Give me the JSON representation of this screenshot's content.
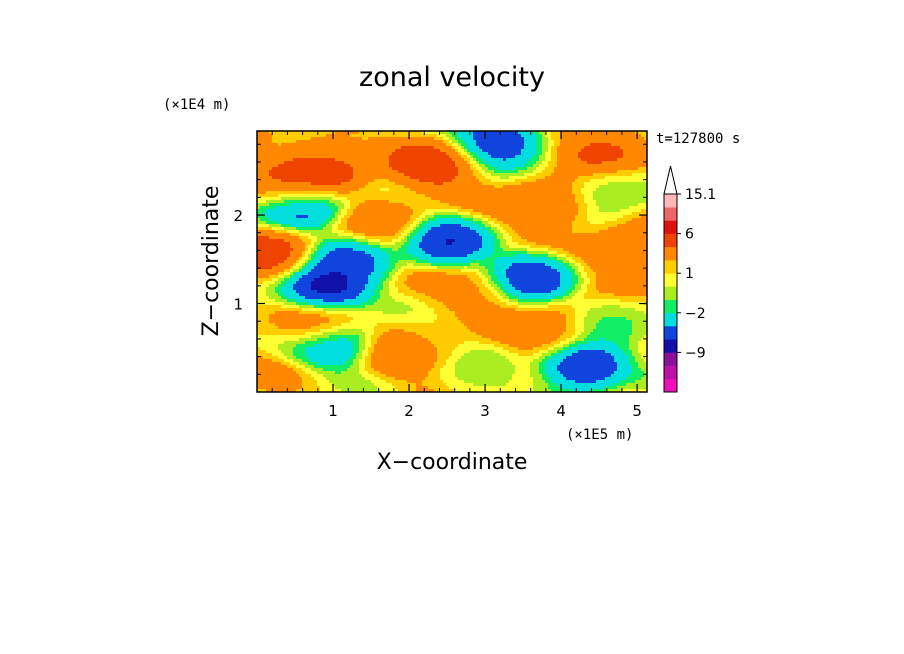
{
  "chart_data": {
    "type": "heatmap",
    "title": "zonal velocity",
    "xlabel": "X−coordinate",
    "ylabel": "Z−coordinate",
    "x_scale_label": "(×1E5 m)",
    "y_scale_label": "(×1E4 m)",
    "time_label": "t=127800 s",
    "xlim": [
      0,
      5.13
    ],
    "ylim": [
      0,
      2.95
    ],
    "x_ticks": [
      1,
      2,
      3,
      4,
      5
    ],
    "y_ticks": [
      1,
      2
    ],
    "colorbar": {
      "levels": [
        -15,
        -12,
        -9,
        -6,
        -4,
        -2,
        -1,
        0,
        1,
        2,
        4,
        6,
        9,
        12,
        15.1
      ],
      "tick_labels": [
        {
          "value": 15.1,
          "text": "15.1"
        },
        {
          "value": 6,
          "text": "6"
        },
        {
          "value": 1,
          "text": "1"
        },
        {
          "value": -2,
          "text": "−2"
        },
        {
          "value": -9,
          "text": "−9"
        }
      ],
      "colors": [
        "#ee11bb",
        "#bb11aa",
        "#881199",
        "#1111aa",
        "#1144dd",
        "#00dddd",
        "#11ee66",
        "#aaee22",
        "#ffff33",
        "#ffcc00",
        "#ff8800",
        "#ee4400",
        "#dd1111",
        "#ee6666",
        "#ffb8b8"
      ],
      "extend": "max"
    },
    "field_features": [
      {
        "x": 0.8,
        "z": 2.45,
        "value": 7
      },
      {
        "x": 0.45,
        "z": 2.3,
        "value": 5
      },
      {
        "x": 0.9,
        "z": 2.65,
        "value": 4
      },
      {
        "x": 0.9,
        "z": 1.15,
        "value": -10
      },
      {
        "x": 0.8,
        "z": 0.75,
        "value": 6
      },
      {
        "x": 1.2,
        "z": 1.5,
        "value": -7
      },
      {
        "x": 1.0,
        "z": 0.55,
        "value": -7
      },
      {
        "x": 0.6,
        "z": 2.1,
        "value": -8
      },
      {
        "x": 2.5,
        "z": 1.7,
        "value": -8
      },
      {
        "x": 2.3,
        "z": 2.55,
        "value": 6
      },
      {
        "x": 3.8,
        "z": 2.1,
        "value": 5
      },
      {
        "x": 3.6,
        "z": 1.3,
        "value": -8
      },
      {
        "x": 3.8,
        "z": 0.7,
        "value": 4
      },
      {
        "x": 4.6,
        "z": 2.7,
        "value": 6
      },
      {
        "x": 3.2,
        "z": 2.85,
        "value": -8
      },
      {
        "x": 4.7,
        "z": 2.3,
        "value": -2
      },
      {
        "x": 4.9,
        "z": 1.55,
        "value": 5
      },
      {
        "x": 4.3,
        "z": 0.3,
        "value": -9
      },
      {
        "x": 2.2,
        "z": 0.6,
        "value": 1
      },
      {
        "x": 2.8,
        "z": 1.1,
        "value": 3
      },
      {
        "x": 4.7,
        "z": 0.8,
        "value": -2
      },
      {
        "x": 1.9,
        "z": 0.45,
        "value": 5
      },
      {
        "x": 2.9,
        "z": 0.15,
        "value": -1
      },
      {
        "x": 1.6,
        "z": 1.95,
        "value": 4
      },
      {
        "x": 0.2,
        "z": 1.6,
        "value": 6
      }
    ]
  }
}
